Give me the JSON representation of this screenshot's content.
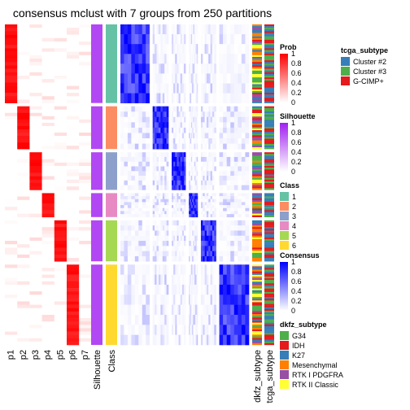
{
  "title": "consensus mclust with 7 groups from 250 partitions",
  "chart_data": {
    "type": "heatmap",
    "title": "consensus mclust with 7 groups from 250 partitions",
    "column_labels": [
      "p1",
      "p2",
      "p3",
      "p4",
      "p5",
      "p6",
      "p7",
      "Silhouette",
      "Class",
      "dkfz_subtype",
      "tcga_subtype"
    ],
    "groups": [
      {
        "class": "1",
        "prob_column": "p1",
        "size": 46
      },
      {
        "class": "2",
        "prob_column": "p2",
        "size": 25
      },
      {
        "class": "3",
        "prob_column": "p3",
        "size": 22
      },
      {
        "class": "4",
        "prob_column": "p4",
        "size": 14
      },
      {
        "class": "5",
        "prob_column": "p5",
        "size": 24
      },
      {
        "class": "6",
        "prob_column": "p6",
        "size": 47
      }
    ],
    "legends": [
      {
        "title": "Prob",
        "ticks": [
          "1",
          "0.8",
          "0.6",
          "0.4",
          "0.2",
          "0"
        ],
        "colors": [
          "#ffffff",
          "#ff0000"
        ]
      },
      {
        "title": "Silhouette",
        "ticks": [
          "1",
          "0.8",
          "0.6",
          "0.4",
          "0.2",
          "0"
        ],
        "colors": [
          "#ffffff",
          "#a020f0"
        ]
      },
      {
        "title": "Class",
        "entries": [
          {
            "label": "1",
            "color": "#66c2a5"
          },
          {
            "label": "2",
            "color": "#fc8d62"
          },
          {
            "label": "3",
            "color": "#8da0cb"
          },
          {
            "label": "4",
            "color": "#e78ac3"
          },
          {
            "label": "5",
            "color": "#a6d854"
          },
          {
            "label": "6",
            "color": "#ffd92f"
          }
        ]
      },
      {
        "title": "Consensus",
        "ticks": [
          "1",
          "0.8",
          "0.6",
          "0.4",
          "0.2",
          "0"
        ],
        "colors": [
          "#ffffff",
          "#0000ff"
        ]
      },
      {
        "title": "dkfz_subtype",
        "entries": [
          {
            "label": "G34",
            "color": "#4daf4a"
          },
          {
            "label": "IDH",
            "color": "#e41a1c"
          },
          {
            "label": "K27",
            "color": "#377eb8"
          },
          {
            "label": "Mesenchymal",
            "color": "#ff7f00"
          },
          {
            "label": "RTK I PDGFRA",
            "color": "#984ea3"
          },
          {
            "label": "RTK II Classic",
            "color": "#ffff33"
          }
        ]
      },
      {
        "title": "tcga_subtype",
        "entries": [
          {
            "label": "Cluster #2",
            "color": "#377eb8"
          },
          {
            "label": "Cluster #3",
            "color": "#4daf4a"
          },
          {
            "label": "G-CIMP+",
            "color": "#e41a1c"
          }
        ]
      }
    ]
  }
}
